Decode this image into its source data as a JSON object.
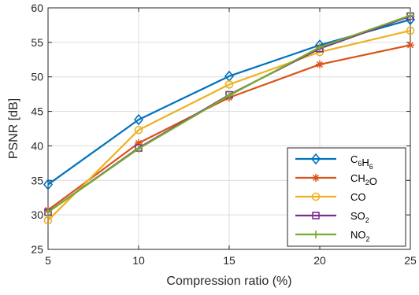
{
  "chart_data": {
    "type": "line",
    "xlabel": "Compression ratio (%)",
    "ylabel": "PSNR [dB]",
    "x": [
      5,
      10,
      15,
      20,
      25
    ],
    "xlim": [
      5,
      25
    ],
    "ylim": [
      25,
      60
    ],
    "xticks": [
      "5",
      "10",
      "15",
      "20",
      "25"
    ],
    "yticks": [
      "25",
      "30",
      "35",
      "40",
      "45",
      "50",
      "55",
      "60"
    ],
    "grid": true,
    "legend_position": "bottom-right",
    "series": [
      {
        "name": "C6H6",
        "label_main": [
          "C",
          "H"
        ],
        "label_sub": [
          "6",
          "6"
        ],
        "color": "#0072BD",
        "marker": "diamond",
        "values": [
          34.4,
          43.8,
          50.1,
          54.6,
          58.3
        ]
      },
      {
        "name": "CH2O",
        "label_main": [
          "CH",
          "O"
        ],
        "label_sub": [
          "2",
          ""
        ],
        "color": "#D95319",
        "marker": "asterisk",
        "values": [
          30.7,
          40.4,
          47.0,
          51.8,
          54.6
        ]
      },
      {
        "name": "CO",
        "label_main": [
          "CO"
        ],
        "label_sub": [
          ""
        ],
        "color": "#EDB120",
        "marker": "circle",
        "values": [
          29.2,
          42.3,
          48.9,
          53.6,
          56.7
        ]
      },
      {
        "name": "SO2",
        "label_main": [
          "SO"
        ],
        "label_sub": [
          "2"
        ],
        "color": "#7E2F8E",
        "marker": "square",
        "values": [
          30.4,
          39.7,
          47.4,
          54.1,
          58.8
        ]
      },
      {
        "name": "NO2",
        "label_main": [
          "NO"
        ],
        "label_sub": [
          "2"
        ],
        "color": "#77AC30",
        "marker": "plus",
        "values": [
          30.4,
          39.6,
          47.3,
          54.3,
          58.9
        ]
      }
    ]
  }
}
